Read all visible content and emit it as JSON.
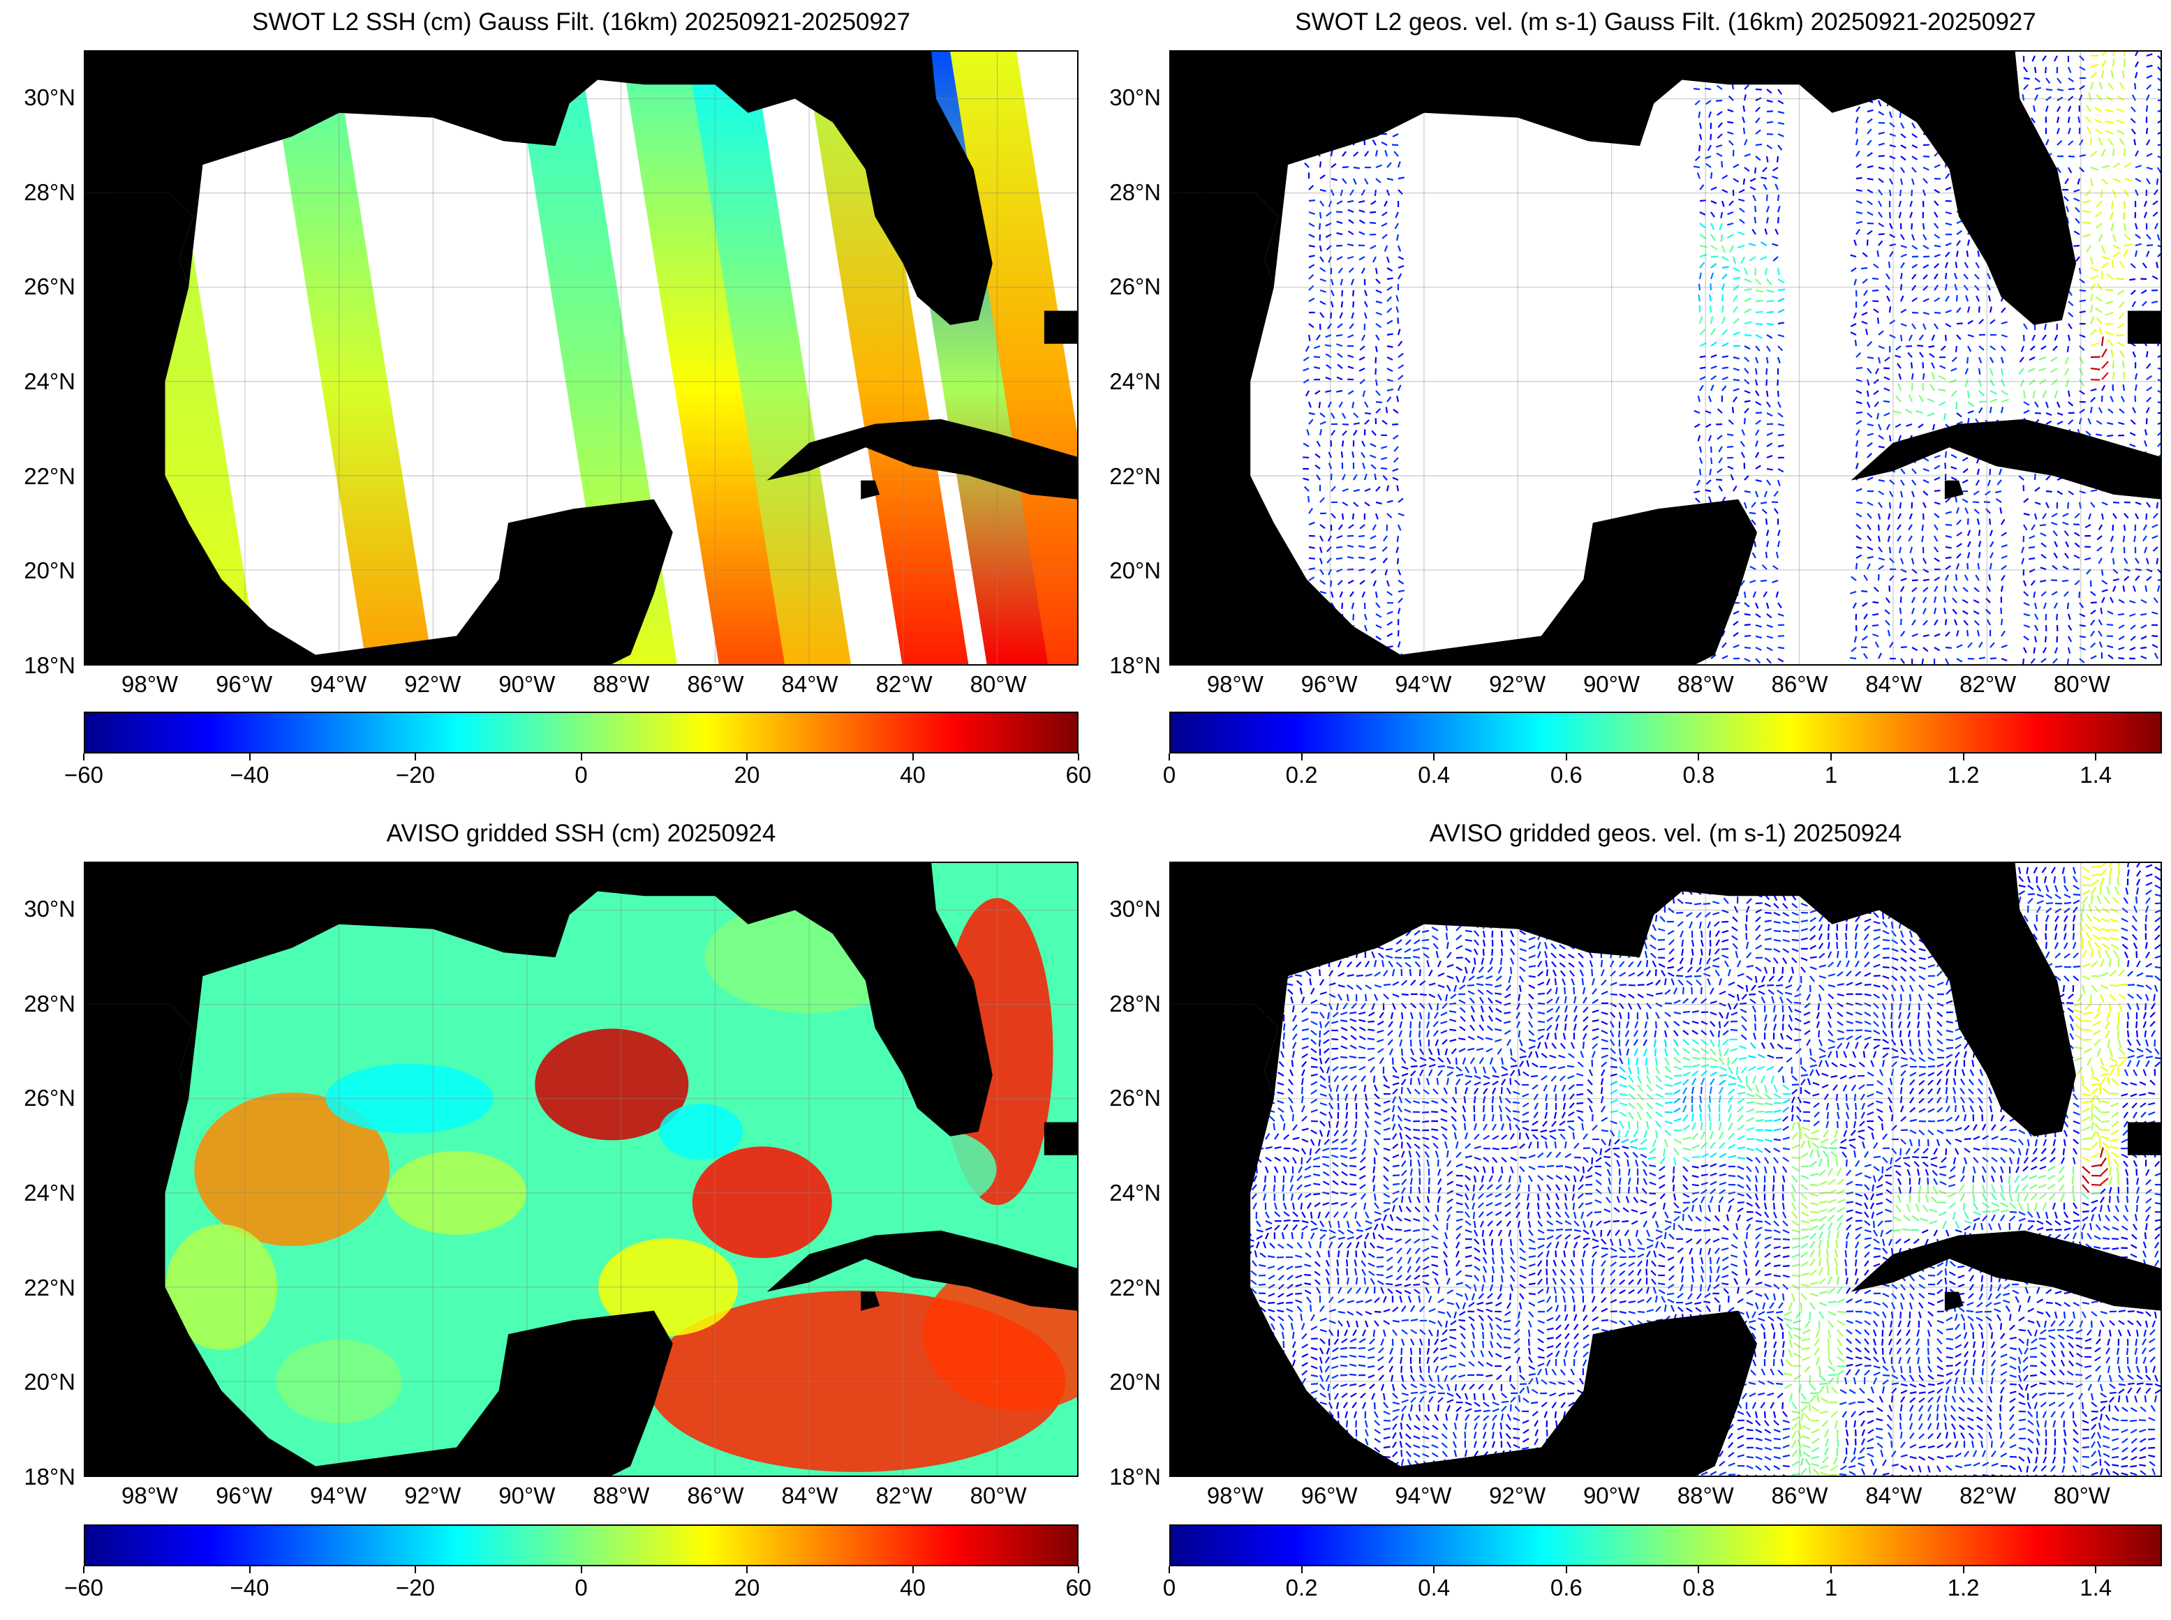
{
  "figure": {
    "panels": [
      {
        "id": "ssh-swot",
        "title": "SWOT L2 SSH (cm) Gauss Filt. (16km) 20250921-20250927",
        "kind": "ssh-swath",
        "colorbar": [
          "−60",
          "−40",
          "−20",
          "0",
          "20",
          "40",
          "60"
        ]
      },
      {
        "id": "vel-swot",
        "title": "SWOT L2 geos. vel. (m s-1) Gauss Filt. (16km) 20250921-20250927",
        "kind": "vel-swath",
        "colorbar": [
          "0",
          "0.2",
          "0.4",
          "0.6",
          "0.8",
          "1",
          "1.2",
          "1.4"
        ]
      },
      {
        "id": "ssh-aviso",
        "title": "AVISO gridded SSH (cm) 20250924",
        "kind": "ssh-grid",
        "colorbar": [
          "−60",
          "−40",
          "−20",
          "0",
          "20",
          "40",
          "60"
        ]
      },
      {
        "id": "vel-aviso",
        "title": "AVISO gridded geos. vel. (m s-1)  20250924",
        "kind": "vel-grid",
        "colorbar": [
          "0",
          "0.2",
          "0.4",
          "0.6",
          "0.8",
          "1",
          "1.2",
          "1.4"
        ]
      }
    ],
    "lat_labels": [
      "30°N",
      "28°N",
      "26°N",
      "24°N",
      "22°N",
      "20°N",
      "18°N"
    ],
    "lon_labels": [
      "98°W",
      "96°W",
      "94°W",
      "92°W",
      "90°W",
      "88°W",
      "86°W",
      "84°W",
      "82°W",
      "80°W"
    ],
    "colormap": {
      "name": "jet",
      "colors": [
        "#00008f",
        "#0000ff",
        "#00ffff",
        "#ffff00",
        "#ff0000",
        "#800000"
      ]
    },
    "land_color": "#000000",
    "ocean_nodata_color": "#ffffff"
  },
  "chart_data": [
    {
      "type": "heatmap",
      "title": "SWOT L2 SSH (cm) Gauss Filt. (16km) 20250921-20250927",
      "x_ticks": [
        "98°W",
        "96°W",
        "94°W",
        "92°W",
        "90°W",
        "88°W",
        "86°W",
        "84°W",
        "82°W",
        "80°W"
      ],
      "y_ticks": [
        "30°N",
        "28°N",
        "26°N",
        "24°N",
        "22°N",
        "20°N",
        "18°N"
      ],
      "xlim": [
        -99.4,
        -78.3
      ],
      "ylim": [
        18,
        31
      ],
      "colorbar_range": [
        -60,
        60
      ],
      "colorbar_ticks": [
        -60,
        -40,
        -20,
        0,
        20,
        40,
        60
      ],
      "grid": true
    },
    {
      "type": "heatmap",
      "title": "SWOT L2 geos. vel. (m s-1) Gauss Filt. (16km) 20250921-20250927",
      "x_ticks": [
        "98°W",
        "96°W",
        "94°W",
        "92°W",
        "90°W",
        "88°W",
        "86°W",
        "84°W",
        "82°W",
        "80°W"
      ],
      "y_ticks": [
        "30°N",
        "28°N",
        "26°N",
        "24°N",
        "22°N",
        "20°N",
        "18°N"
      ],
      "xlim": [
        -99.4,
        -78.3
      ],
      "ylim": [
        18,
        31
      ],
      "colorbar_range": [
        0,
        1.5
      ],
      "colorbar_ticks": [
        0,
        0.2,
        0.4,
        0.6,
        0.8,
        1,
        1.2,
        1.4
      ],
      "grid": true
    },
    {
      "type": "heatmap",
      "title": "AVISO gridded SSH (cm) 20250924",
      "x_ticks": [
        "98°W",
        "96°W",
        "94°W",
        "92°W",
        "90°W",
        "88°W",
        "86°W",
        "84°W",
        "82°W",
        "80°W"
      ],
      "y_ticks": [
        "30°N",
        "28°N",
        "26°N",
        "24°N",
        "22°N",
        "20°N",
        "18°N"
      ],
      "xlim": [
        -99.4,
        -78.3
      ],
      "ylim": [
        18,
        31
      ],
      "colorbar_range": [
        -60,
        60
      ],
      "colorbar_ticks": [
        -60,
        -40,
        -20,
        0,
        20,
        40,
        60
      ],
      "grid": true
    },
    {
      "type": "heatmap",
      "title": "AVISO gridded geos. vel. (m s-1)  20250924",
      "x_ticks": [
        "98°W",
        "96°W",
        "94°W",
        "92°W",
        "90°W",
        "88°W",
        "86°W",
        "84°W",
        "82°W",
        "80°W"
      ],
      "y_ticks": [
        "30°N",
        "28°N",
        "26°N",
        "24°N",
        "22°N",
        "20°N",
        "18°N"
      ],
      "xlim": [
        -99.4,
        -78.3
      ],
      "ylim": [
        18,
        31
      ],
      "colorbar_range": [
        0,
        1.5
      ],
      "colorbar_ticks": [
        0,
        0.2,
        0.4,
        0.6,
        0.8,
        1,
        1.2,
        1.4
      ],
      "grid": true
    }
  ]
}
